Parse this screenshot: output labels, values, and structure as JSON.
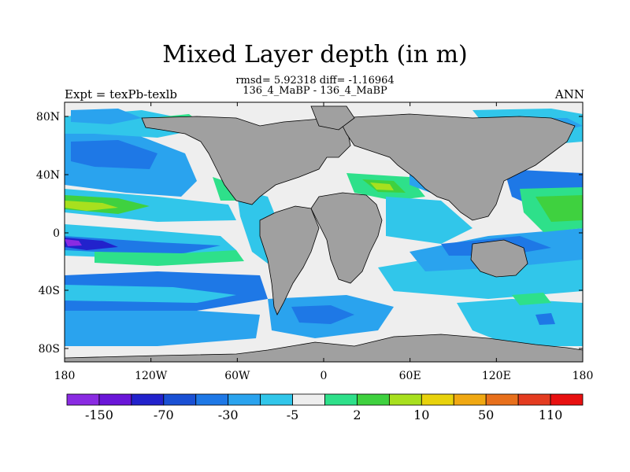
{
  "title": "Mixed Layer depth (in m)",
  "stats_line1": "rmsd= 5.92318 diff= -1.16964",
  "stats_line2": "136_4_MaBP - 136_4_MaBP",
  "left_label": "Expt = texPb-texlb",
  "right_label": "ANN",
  "y_ticks": [
    "80N",
    "40N",
    "0",
    "40S",
    "80S"
  ],
  "x_ticks": [
    "180",
    "120W",
    "60W",
    "0",
    "60E",
    "120E",
    "180"
  ],
  "colorbar": {
    "colors": [
      "#8a2be2",
      "#6a16d8",
      "#2222cc",
      "#1a50d4",
      "#1e78e6",
      "#2aa3ee",
      "#31c6ea",
      "#eeeeee",
      "#2ee08a",
      "#3fd13f",
      "#a8e01e",
      "#e8d20c",
      "#f0a812",
      "#e8701c",
      "#e43c20",
      "#e81010"
    ],
    "labels": [
      "-150",
      "-70",
      "-30",
      "-5",
      "2",
      "10",
      "50",
      "110"
    ]
  },
  "land_color": "#a0a0a0"
}
